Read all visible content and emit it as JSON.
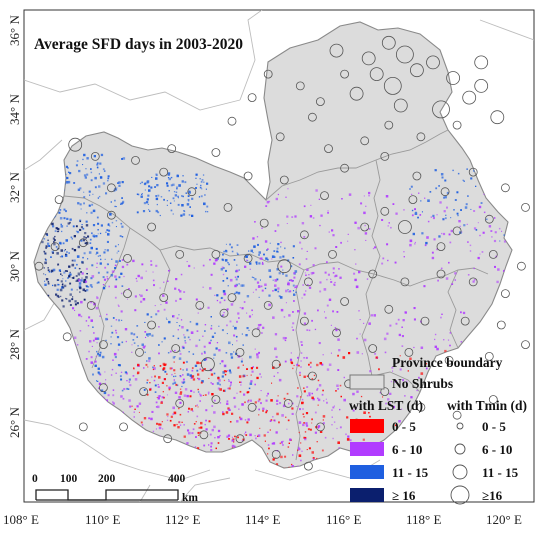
{
  "title": "Average SFD days in 2003-2020",
  "axes": {
    "lon_ticks": [
      "108° E",
      "110° E",
      "112° E",
      "114° E",
      "116° E",
      "118° E",
      "120° E"
    ],
    "lat_ticks": [
      "36° N",
      "34° N",
      "32° N",
      "30° N",
      "28° N",
      "26° N"
    ]
  },
  "legend": {
    "province_boundary": "Province boundary",
    "no_shrubs": "No Shrubs",
    "lst_header": "with LST (d)",
    "tmin_header": "with Tmin (d)",
    "lst_classes": [
      {
        "label": "0 - 5",
        "color": "#ff0000"
      },
      {
        "label": "6 - 10",
        "color": "#b13cff"
      },
      {
        "label": "11 - 15",
        "color": "#1f5fe0"
      },
      {
        "label": "≥ 16",
        "color": "#0b1f6e"
      }
    ],
    "tmin_classes": [
      {
        "label": "0 - 5"
      },
      {
        "label": "6 - 10"
      },
      {
        "label": "11 - 15"
      },
      {
        "label": "≥16"
      }
    ],
    "no_shrubs_color": "#dcdcdc"
  },
  "scale_bar": {
    "labels": [
      "0",
      "100",
      "200",
      "400"
    ],
    "unit": "km"
  },
  "map_data": {
    "lon_range": [
      108,
      121
    ],
    "lat_range": [
      24.2,
      36.5
    ],
    "stations": [
      [
        115.6,
        35.5,
        3
      ],
      [
        116.4,
        35.3,
        3
      ],
      [
        116.9,
        35.7,
        3
      ],
      [
        117.3,
        35.4,
        4
      ],
      [
        117.6,
        35.0,
        3
      ],
      [
        118.0,
        35.2,
        3
      ],
      [
        118.5,
        34.8,
        3
      ],
      [
        116.6,
        34.9,
        3
      ],
      [
        117.0,
        34.6,
        4
      ],
      [
        115.8,
        34.9,
        2
      ],
      [
        116.1,
        34.4,
        3
      ],
      [
        117.2,
        34.1,
        3
      ],
      [
        118.2,
        34.0,
        4
      ],
      [
        119.2,
        34.6,
        3
      ],
      [
        119.6,
        33.8,
        3
      ],
      [
        118.6,
        33.6,
        2
      ],
      [
        117.7,
        33.3,
        2
      ],
      [
        116.9,
        33.6,
        2
      ],
      [
        116.3,
        33.2,
        2
      ],
      [
        115.4,
        33.0,
        2
      ],
      [
        115.0,
        33.8,
        2
      ],
      [
        114.7,
        34.6,
        2
      ],
      [
        115.2,
        34.2,
        2
      ],
      [
        113.9,
        34.9,
        2
      ],
      [
        113.5,
        34.3,
        2
      ],
      [
        113.0,
        33.7,
        2
      ],
      [
        114.2,
        33.3,
        2
      ],
      [
        115.8,
        32.5,
        2
      ],
      [
        116.8,
        32.8,
        2
      ],
      [
        117.6,
        32.3,
        2
      ],
      [
        118.3,
        31.9,
        2
      ],
      [
        119.0,
        32.4,
        2
      ],
      [
        119.8,
        32.0,
        2
      ],
      [
        120.3,
        31.5,
        2
      ],
      [
        119.4,
        31.2,
        2
      ],
      [
        118.6,
        30.9,
        2
      ],
      [
        117.5,
        31.7,
        2
      ],
      [
        116.8,
        31.4,
        2
      ],
      [
        116.3,
        31.0,
        2
      ],
      [
        117.3,
        31.0,
        3
      ],
      [
        118.2,
        30.5,
        2
      ],
      [
        119.5,
        30.3,
        2
      ],
      [
        120.2,
        30.0,
        2
      ],
      [
        119.8,
        29.3,
        2
      ],
      [
        119.0,
        29.6,
        2
      ],
      [
        118.2,
        29.8,
        2
      ],
      [
        117.3,
        29.6,
        2
      ],
      [
        116.5,
        29.8,
        2
      ],
      [
        115.5,
        30.3,
        2
      ],
      [
        114.8,
        30.8,
        2
      ],
      [
        113.8,
        31.1,
        2
      ],
      [
        112.9,
        31.5,
        2
      ],
      [
        112.0,
        31.9,
        2
      ],
      [
        111.3,
        32.4,
        2
      ],
      [
        110.6,
        32.7,
        2
      ],
      [
        109.6,
        32.8,
        2
      ],
      [
        109.1,
        33.1,
        3
      ],
      [
        110.0,
        32.0,
        2
      ],
      [
        111.0,
        31.0,
        2
      ],
      [
        109.3,
        30.6,
        2
      ],
      [
        108.6,
        30.5,
        2
      ],
      [
        108.2,
        30.0,
        2
      ],
      [
        110.4,
        30.2,
        2
      ],
      [
        111.7,
        30.3,
        2
      ],
      [
        112.6,
        30.3,
        2
      ],
      [
        113.4,
        30.2,
        2
      ],
      [
        114.3,
        30.0,
        3
      ],
      [
        114.9,
        29.6,
        2
      ],
      [
        115.8,
        29.1,
        2
      ],
      [
        116.9,
        28.9,
        2
      ],
      [
        117.8,
        28.6,
        2
      ],
      [
        118.8,
        28.6,
        2
      ],
      [
        119.7,
        28.5,
        2
      ],
      [
        120.3,
        28.0,
        2
      ],
      [
        119.4,
        27.7,
        2
      ],
      [
        118.4,
        27.6,
        2
      ],
      [
        117.4,
        27.8,
        2
      ],
      [
        116.5,
        27.9,
        2
      ],
      [
        115.6,
        28.3,
        2
      ],
      [
        114.8,
        28.6,
        2
      ],
      [
        113.9,
        29.0,
        2
      ],
      [
        113.0,
        29.2,
        2
      ],
      [
        112.2,
        29.0,
        2
      ],
      [
        111.3,
        29.2,
        2
      ],
      [
        110.4,
        29.3,
        2
      ],
      [
        109.5,
        29.0,
        2
      ],
      [
        108.9,
        28.2,
        2
      ],
      [
        109.8,
        28.0,
        2
      ],
      [
        110.7,
        27.8,
        2
      ],
      [
        111.6,
        27.9,
        2
      ],
      [
        112.4,
        27.5,
        3
      ],
      [
        113.2,
        27.8,
        2
      ],
      [
        114.1,
        27.5,
        2
      ],
      [
        115.0,
        27.2,
        2
      ],
      [
        115.9,
        27.0,
        2
      ],
      [
        116.8,
        26.8,
        2
      ],
      [
        117.7,
        26.4,
        2
      ],
      [
        118.6,
        26.2,
        2
      ],
      [
        119.5,
        26.6,
        2
      ],
      [
        116.1,
        26.0,
        2
      ],
      [
        115.2,
        25.9,
        2
      ],
      [
        114.4,
        26.5,
        2
      ],
      [
        113.5,
        26.4,
        2
      ],
      [
        112.6,
        26.6,
        2
      ],
      [
        111.7,
        26.5,
        2
      ],
      [
        110.8,
        26.8,
        2
      ],
      [
        109.8,
        26.9,
        2
      ],
      [
        109.3,
        25.9,
        2
      ],
      [
        110.3,
        25.9,
        2
      ],
      [
        111.4,
        25.6,
        2
      ],
      [
        112.3,
        25.7,
        2
      ],
      [
        113.2,
        25.6,
        2
      ],
      [
        114.1,
        25.2,
        2
      ],
      [
        114.9,
        24.9,
        2
      ],
      [
        112.8,
        28.8,
        2
      ],
      [
        113.6,
        28.3,
        2
      ],
      [
        111.0,
        28.5,
        2
      ],
      [
        110.0,
        31.3,
        2
      ],
      [
        112.6,
        32.9,
        2
      ],
      [
        108.7,
        31.7,
        2
      ],
      [
        111.5,
        33.0,
        2
      ],
      [
        113.4,
        32.3,
        2
      ],
      [
        114.3,
        32.2,
        2
      ],
      [
        115.3,
        31.8,
        2
      ],
      [
        119.2,
        35.2,
        3
      ],
      [
        118.9,
        34.3,
        3
      ]
    ],
    "pixel_clusters": [
      {
        "color": "#1f5fe0",
        "lon": [
          108.3,
          110.3
        ],
        "lat": [
          29.4,
          32.9
        ],
        "n": 260
      },
      {
        "color": "#0b1f6e",
        "lon": [
          108.2,
          109.4
        ],
        "lat": [
          29.0,
          31.2
        ],
        "n": 130
      },
      {
        "color": "#1f5fe0",
        "lon": [
          110.6,
          112.4
        ],
        "lat": [
          31.3,
          32.4
        ],
        "n": 110
      },
      {
        "color": "#1f5fe0",
        "lon": [
          112.6,
          114.6
        ],
        "lat": [
          29.2,
          30.6
        ],
        "n": 110
      },
      {
        "color": "#b13cff",
        "lon": [
          109.0,
          115.8
        ],
        "lat": [
          26.4,
          30.2
        ],
        "n": 430
      },
      {
        "color": "#b13cff",
        "lon": [
          113.5,
          119.9
        ],
        "lat": [
          29.5,
          32.0
        ],
        "n": 180
      },
      {
        "color": "#1f5fe0",
        "lon": [
          109.5,
          113.5
        ],
        "lat": [
          26.8,
          28.8
        ],
        "n": 160
      },
      {
        "color": "#ff0000",
        "lon": [
          110.5,
          115.3
        ],
        "lat": [
          24.7,
          27.6
        ],
        "n": 300
      },
      {
        "color": "#b13cff",
        "lon": [
          109.7,
          116.0
        ],
        "lat": [
          24.8,
          26.8
        ],
        "n": 240
      },
      {
        "color": "#ff0000",
        "lon": [
          115.5,
          119.5
        ],
        "lat": [
          25.5,
          28.0
        ],
        "n": 70
      },
      {
        "color": "#1f5fe0",
        "lon": [
          117.4,
          119.8
        ],
        "lat": [
          30.6,
          32.5
        ],
        "n": 70
      },
      {
        "color": "#b13cff",
        "lon": [
          116.0,
          119.8
        ],
        "lat": [
          26.0,
          29.0
        ],
        "n": 110
      }
    ]
  }
}
